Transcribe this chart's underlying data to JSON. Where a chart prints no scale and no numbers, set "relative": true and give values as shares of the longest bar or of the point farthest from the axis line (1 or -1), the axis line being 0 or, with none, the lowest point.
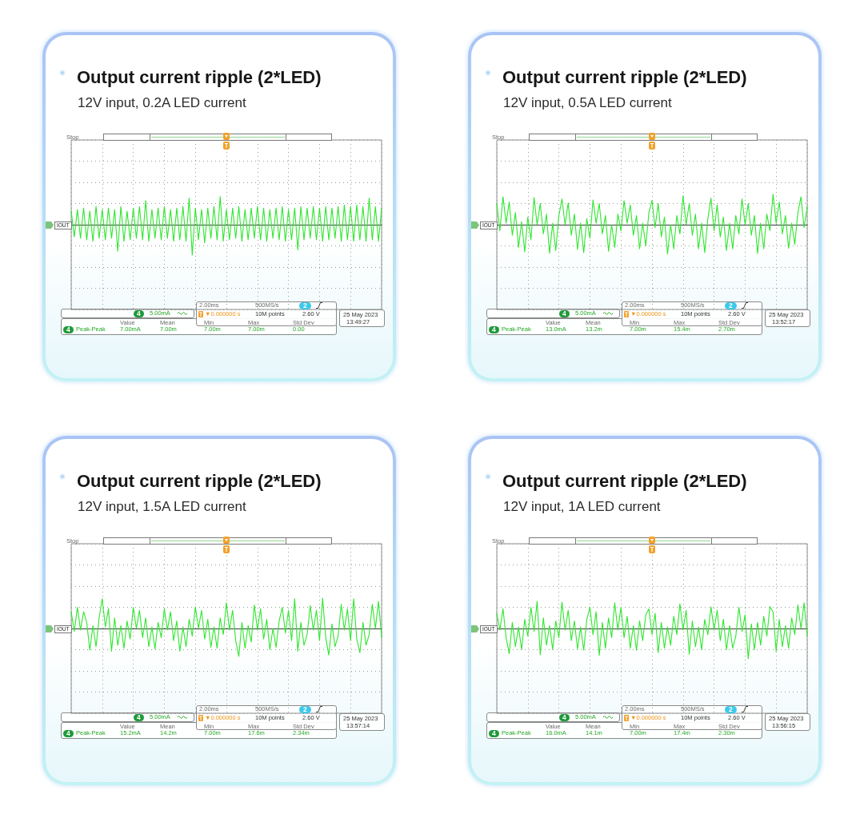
{
  "chart_data": [
    {
      "type": "line",
      "title": "Output current ripple (2*LED)",
      "subtitle": "12V input, 0.2A LED current",
      "categories": [
        null,
        null,
        null,
        null,
        null,
        null,
        null,
        null,
        null,
        null,
        null,
        null,
        null,
        null,
        null,
        null,
        null,
        null,
        null,
        null,
        null,
        null,
        null,
        null,
        null,
        null,
        null,
        null,
        null,
        null,
        null,
        null,
        null,
        null,
        null,
        null,
        null,
        null,
        null,
        null,
        null,
        null,
        null,
        null,
        null,
        null,
        null,
        null,
        null,
        null,
        null,
        null,
        null,
        null,
        null,
        null,
        null,
        null,
        null,
        null,
        null,
        null,
        null,
        null,
        null,
        null,
        null,
        null,
        null,
        null,
        null,
        null,
        null,
        null,
        null,
        null,
        null,
        null,
        null,
        null,
        null,
        null,
        null,
        null,
        null,
        null,
        null,
        null,
        null,
        null,
        null,
        null,
        null,
        null,
        null,
        null,
        null,
        null,
        null,
        null,
        null
      ],
      "series": [
        {
          "color": "#2ee62e",
          "values": [
            0.45,
            -0.4,
            0.5,
            -0.45,
            0.55,
            -0.5,
            0.45,
            -0.55,
            0.6,
            -0.45,
            0.5,
            -0.5,
            0.55,
            -0.45,
            0.5,
            -0.88,
            0.6,
            -0.55,
            0.45,
            -0.5,
            0.55,
            -0.45,
            0.6,
            -0.5,
            0.8,
            -0.55,
            0.5,
            -0.45,
            0.55,
            -0.5,
            0.6,
            -0.45,
            0.5,
            -0.55,
            0.55,
            -0.5,
            0.6,
            -0.55,
            0.88,
            -1.0,
            0.55,
            -0.5,
            0.5,
            -0.6,
            0.55,
            -0.45,
            0.6,
            -0.5,
            0.93,
            -0.55,
            0.5,
            -0.5,
            0.55,
            -0.45,
            0.6,
            -0.55,
            0.5,
            -0.5,
            0.55,
            -0.45,
            0.6,
            -0.5,
            0.55,
            -0.55,
            0.5,
            -0.45,
            0.55,
            -0.5,
            0.6,
            -0.55,
            0.5,
            -0.5,
            0.55,
            -0.83,
            0.6,
            -0.5,
            0.55,
            -0.45,
            0.6,
            -0.5,
            0.55,
            -0.55,
            0.6,
            -0.5,
            0.55,
            -0.45,
            0.6,
            -0.55,
            0.65,
            -0.5,
            0.6,
            -0.55,
            0.65,
            -0.5,
            0.6,
            -0.55,
            0.88,
            -0.5,
            0.6,
            -0.55,
            0.55
          ]
        }
      ],
      "relative": true,
      "grid": true,
      "annotations": [
        "Stop",
        "IOUT",
        "4",
        "5.00mA",
        "2.00ms",
        "500MS/s",
        "2",
        "▼0.000000 s",
        "10M points",
        "2.60 V",
        "25 May 2023",
        "13:49:27",
        "Value",
        "Mean",
        "Min",
        "Max",
        "Std Dev",
        "4",
        "Peak-Peak",
        "7.00mA",
        "7.00m",
        "7.00m",
        "7.00m",
        "0.00"
      ]
    },
    {
      "type": "line",
      "title": "Output current ripple (2*LED)",
      "subtitle": "12V input, 0.5A LED current",
      "categories": [
        null,
        null,
        null,
        null,
        null,
        null,
        null,
        null,
        null,
        null,
        null,
        null,
        null,
        null,
        null,
        null,
        null,
        null,
        null,
        null,
        null,
        null,
        null,
        null,
        null,
        null,
        null,
        null,
        null,
        null,
        null,
        null,
        null,
        null,
        null,
        null,
        null,
        null,
        null,
        null,
        null,
        null,
        null,
        null,
        null,
        null,
        null,
        null,
        null,
        null,
        null,
        null,
        null,
        null,
        null,
        null,
        null,
        null,
        null,
        null,
        null,
        null,
        null,
        null,
        null,
        null,
        null,
        null,
        null,
        null,
        null,
        null,
        null,
        null,
        null,
        null,
        null,
        null,
        null,
        null,
        null,
        null,
        null,
        null,
        null,
        null,
        null,
        null,
        null,
        null,
        null,
        null,
        null,
        null,
        null,
        null,
        null,
        null,
        null,
        null,
        null
      ],
      "series": [
        {
          "color": "#2ee62e",
          "values": [
            0.7,
            -0.2,
            0.92,
            0.05,
            0.75,
            -0.35,
            0.4,
            -0.75,
            0.1,
            -0.9,
            0.25,
            -0.5,
            0.9,
            0.0,
            0.7,
            -0.3,
            0.35,
            -0.94,
            0.05,
            -0.85,
            0.3,
            0.85,
            0.0,
            0.72,
            -0.35,
            0.35,
            -0.82,
            0.05,
            -0.92,
            0.2,
            -0.45,
            0.82,
            0.05,
            0.7,
            -0.3,
            0.3,
            -0.88,
            0.0,
            -0.75,
            0.35,
            -0.2,
            0.8,
            0.05,
            0.65,
            -0.35,
            0.3,
            -0.8,
            0.05,
            -0.7,
            0.4,
            0.8,
            -0.1,
            0.7,
            -0.4,
            0.25,
            -0.97,
            0.0,
            -0.8,
            0.3,
            -0.3,
            0.95,
            0.0,
            0.7,
            -0.35,
            0.35,
            -0.8,
            0.05,
            -0.92,
            0.2,
            0.88,
            -0.2,
            0.65,
            -0.4,
            0.25,
            -0.85,
            0.05,
            -0.8,
            0.3,
            -0.3,
            0.85,
            0.0,
            0.7,
            -0.35,
            0.3,
            -0.95,
            0.05,
            -0.8,
            0.35,
            -0.2,
            1.0,
            0.05,
            0.75,
            -0.3,
            0.3,
            -0.78,
            0.05,
            -0.65,
            0.4,
            0.92,
            -0.1,
            0.6
          ]
        }
      ],
      "relative": true,
      "grid": true,
      "annotations": [
        "Stop",
        "IOUT",
        "4",
        "5.00mA",
        "2.00ms",
        "500MS/s",
        "2",
        "▼0.000000 s",
        "10M points",
        "2.60 V",
        "25 May 2023",
        "13:52:17",
        "Value",
        "Mean",
        "Min",
        "Max",
        "Std Dev",
        "4",
        "Peak-Peak",
        "13.0mA",
        "13.2m",
        "7.00m",
        "15.4m",
        "2.70m"
      ]
    },
    {
      "type": "line",
      "title": "Output current ripple (2*LED)",
      "subtitle": "12V input, 1.5A LED current",
      "categories": [
        null,
        null,
        null,
        null,
        null,
        null,
        null,
        null,
        null,
        null,
        null,
        null,
        null,
        null,
        null,
        null,
        null,
        null,
        null,
        null,
        null,
        null,
        null,
        null,
        null,
        null,
        null,
        null,
        null,
        null,
        null,
        null,
        null,
        null,
        null,
        null,
        null,
        null,
        null,
        null,
        null,
        null,
        null,
        null,
        null,
        null,
        null,
        null,
        null,
        null,
        null,
        null,
        null,
        null,
        null,
        null,
        null,
        null,
        null,
        null,
        null,
        null,
        null,
        null,
        null,
        null,
        null,
        null,
        null,
        null,
        null,
        null,
        null,
        null,
        null,
        null,
        null,
        null,
        null,
        null,
        null,
        null,
        null,
        null,
        null,
        null,
        null,
        null,
        null,
        null,
        null,
        null,
        null,
        null,
        null,
        null,
        null,
        null,
        null,
        null,
        null
      ],
      "series": [
        {
          "color": "#2ee62e",
          "values": [
            0.55,
            -0.1,
            0.7,
            -0.05,
            0.55,
            0.2,
            -0.72,
            0.1,
            -0.6,
            0.35,
            0.98,
            0.05,
            0.65,
            -0.75,
            0.35,
            -0.55,
            0.1,
            -0.65,
            0.25,
            -0.35,
            0.7,
            0.0,
            0.6,
            -0.3,
            0.35,
            -0.6,
            0.05,
            -0.68,
            0.2,
            -0.3,
            0.65,
            -0.05,
            0.55,
            -0.4,
            0.25,
            -0.75,
            0.05,
            -0.6,
            0.3,
            -0.25,
            0.72,
            0.0,
            0.6,
            -0.35,
            0.3,
            -0.62,
            0.05,
            -0.65,
            0.35,
            -0.2,
            0.85,
            -0.05,
            0.6,
            -0.4,
            -0.92,
            0.2,
            -0.65,
            0.1,
            -0.45,
            0.78,
            -0.05,
            0.65,
            -0.35,
            0.3,
            -0.7,
            0.0,
            -0.62,
            0.25,
            0.7,
            -0.15,
            0.6,
            -0.4,
            0.98,
            -0.75,
            0.2,
            -0.55,
            -0.2,
            0.75,
            -0.05,
            0.6,
            -0.4,
            1.0,
            -0.3,
            -0.88,
            0.15,
            -0.6,
            -0.25,
            0.8,
            -0.05,
            0.65,
            -0.4,
            0.98,
            -0.35,
            -0.8,
            0.2,
            -0.55,
            -0.2,
            0.8,
            0.0,
            0.9,
            -0.3
          ]
        }
      ],
      "relative": true,
      "grid": true,
      "annotations": [
        "Stop",
        "IOUT",
        "4",
        "5.00mA",
        "2.00ms",
        "500MS/s",
        "2",
        "▼0.000000 s",
        "10M points",
        "2.60 V",
        "25 May 2023",
        "13:57:14",
        "Value",
        "Mean",
        "Min",
        "Max",
        "Std Dev",
        "4",
        "Peak-Peak",
        "15.2mA",
        "14.2m",
        "7.00m",
        "17.6m",
        "2.34m"
      ]
    },
    {
      "type": "line",
      "title": "Output current ripple (2*LED)",
      "subtitle": "12V input, 1A LED current",
      "categories": [
        null,
        null,
        null,
        null,
        null,
        null,
        null,
        null,
        null,
        null,
        null,
        null,
        null,
        null,
        null,
        null,
        null,
        null,
        null,
        null,
        null,
        null,
        null,
        null,
        null,
        null,
        null,
        null,
        null,
        null,
        null,
        null,
        null,
        null,
        null,
        null,
        null,
        null,
        null,
        null,
        null,
        null,
        null,
        null,
        null,
        null,
        null,
        null,
        null,
        null,
        null,
        null,
        null,
        null,
        null,
        null,
        null,
        null,
        null,
        null,
        null,
        null,
        null,
        null,
        null,
        null,
        null,
        null,
        null,
        null,
        null,
        null,
        null,
        null,
        null,
        null,
        null,
        null,
        null,
        null,
        null,
        null,
        null,
        null,
        null,
        null,
        null,
        null,
        null,
        null,
        null,
        null,
        null,
        null,
        null,
        null,
        null,
        null,
        null,
        null,
        null
      ],
      "series": [
        {
          "color": "#2ee62e",
          "values": [
            0.5,
            -0.05,
            0.65,
            -0.3,
            -0.83,
            0.2,
            -0.6,
            0.05,
            -0.7,
            0.3,
            -0.25,
            0.7,
            -0.1,
            0.9,
            -0.87,
            0.35,
            -0.55,
            0.1,
            -0.7,
            0.25,
            -0.3,
            0.87,
            -0.05,
            0.6,
            -0.4,
            0.25,
            -0.68,
            0.05,
            -0.72,
            0.3,
            0.7,
            -0.2,
            0.55,
            -0.89,
            0.2,
            -0.65,
            0.35,
            -0.3,
            0.85,
            -0.05,
            0.7,
            -0.3,
            0.4,
            -0.65,
            0.1,
            -0.72,
            0.25,
            -0.4,
            0.45,
            0.65,
            -0.2,
            0.5,
            -0.8,
            0.2,
            -0.65,
            0.05,
            -0.55,
            0.4,
            -0.2,
            0.82,
            -0.05,
            0.6,
            -0.85,
            0.25,
            -0.6,
            0.05,
            -0.7,
            0.3,
            -0.2,
            0.72,
            -0.05,
            0.6,
            -0.4,
            0.3,
            -0.7,
            0.1,
            -0.65,
            -0.25,
            0.7,
            -0.1,
            0.45,
            -1.0,
            0.15,
            -0.7,
            0.2,
            -0.55,
            0.4,
            -0.25,
            0.72,
            0.55,
            -0.75,
            0.3,
            -0.6,
            0.1,
            -0.65,
            0.35,
            -0.2,
            0.78,
            0.0,
            0.85,
            -0.25
          ]
        }
      ],
      "relative": true,
      "grid": true,
      "annotations": [
        "Stop",
        "IOUT",
        "4",
        "5.00mA",
        "2.00ms",
        "500MS/s",
        "2",
        "▼0.000000 s",
        "10M points",
        "2.60 V",
        "25 May 2023",
        "13:56:15",
        "Value",
        "Mean",
        "Min",
        "Max",
        "Std Dev",
        "4",
        "Peak-Peak",
        "16.0mA",
        "14.1m",
        "7.00m",
        "17.4m",
        "2.30m"
      ]
    }
  ]
}
